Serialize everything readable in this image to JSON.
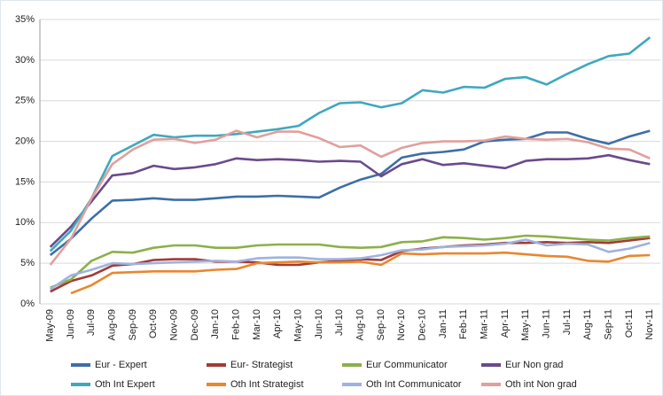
{
  "chart_data": {
    "type": "line",
    "categories": [
      "May-09",
      "Jun-09",
      "Jul-09",
      "Aug-09",
      "Sep-09",
      "Oct-09",
      "Nov-09",
      "Dec-09",
      "Jan-10",
      "Feb-10",
      "Mar-10",
      "Apr-10",
      "May-10",
      "Jun-10",
      "Jul-10",
      "Aug-10",
      "Sep-10",
      "Nov-10",
      "Dec-10",
      "Jan-11",
      "Feb-11",
      "Mar-11",
      "Apr-11",
      "May-11",
      "Jun-11",
      "Jul-11",
      "Aug-11",
      "Sep-11",
      "Oct-11",
      "Nov-11"
    ],
    "ylim": [
      0,
      35
    ],
    "yticks": [
      {
        "value": 0,
        "label": "0%"
      },
      {
        "value": 5,
        "label": "5%"
      },
      {
        "value": 10,
        "label": "10%"
      },
      {
        "value": 15,
        "label": "15%"
      },
      {
        "value": 20,
        "label": "20%"
      },
      {
        "value": 25,
        "label": "25%"
      },
      {
        "value": 30,
        "label": "30%"
      },
      {
        "value": 35,
        "label": "35%"
      }
    ],
    "grid": true,
    "legend": "bottom",
    "series": [
      {
        "name": "Eur - Expert",
        "color": "#3e6ea6",
        "values": [
          6,
          8,
          10.5,
          12.7,
          12.8,
          13,
          12.8,
          12.8,
          13,
          13.2,
          13.2,
          13.3,
          13.2,
          13.1,
          14.3,
          15.3,
          16,
          18,
          18.5,
          18.7,
          19,
          20,
          20.2,
          20.3,
          21.1,
          21.1,
          20.3,
          19.7,
          20.6,
          21.3
        ]
      },
      {
        "name": "Eur- Strategist",
        "color": "#a33a36",
        "values": [
          1.5,
          2.8,
          3.5,
          4.7,
          4.9,
          5.4,
          5.5,
          5.5,
          5.2,
          5.2,
          5.1,
          4.8,
          4.8,
          5.1,
          5.3,
          5.5,
          5.4,
          6.5,
          6.8,
          7,
          7.2,
          7.3,
          7.5,
          7.5,
          7.6,
          7.5,
          7.6,
          7.5,
          7.8,
          8.1
        ]
      },
      {
        "name": "Eur Communicator",
        "color": "#8cb04a",
        "values": [
          2,
          3,
          5.3,
          6.4,
          6.3,
          6.9,
          7.2,
          7.2,
          6.9,
          6.9,
          7.2,
          7.3,
          7.3,
          7.3,
          7,
          6.9,
          7,
          7.6,
          7.7,
          8.2,
          8.1,
          7.9,
          8.1,
          8.4,
          8.3,
          8.1,
          7.9,
          7.8,
          8.1,
          8.3
        ]
      },
      {
        "name": "Eur Non grad",
        "color": "#6a4a8c",
        "values": [
          7,
          9.5,
          12.6,
          15.8,
          16.1,
          17,
          16.6,
          16.8,
          17.2,
          17.9,
          17.7,
          17.8,
          17.7,
          17.5,
          17.6,
          17.5,
          15.7,
          17.2,
          17.8,
          17.1,
          17.3,
          17,
          16.7,
          17.6,
          17.8,
          17.8,
          17.9,
          18.3,
          17.7,
          17.2
        ]
      },
      {
        "name": "Oth Int Expert",
        "color": "#3fa8bd",
        "values": [
          6.5,
          9,
          13,
          18.2,
          19.5,
          20.8,
          20.5,
          20.7,
          20.7,
          20.9,
          21.2,
          21.5,
          21.9,
          23.5,
          24.7,
          24.8,
          24.2,
          24.7,
          26.3,
          26,
          26.7,
          26.6,
          27.7,
          27.9,
          27,
          28.3,
          29.5,
          30.5,
          30.8,
          32.8
        ]
      },
      {
        "name": "Oth Int Strategist",
        "color": "#e8872f",
        "values": [
          null,
          1.3,
          2.3,
          3.8,
          3.9,
          4,
          4,
          4,
          4.2,
          4.3,
          5,
          5.1,
          5.2,
          5.1,
          5.1,
          5.2,
          4.8,
          6.2,
          6.1,
          6.2,
          6.2,
          6.2,
          6.3,
          6.1,
          5.9,
          5.8,
          5.3,
          5.2,
          5.9,
          6
        ]
      },
      {
        "name": "Oth Int Communicator",
        "color": "#9db3e0",
        "values": [
          1.8,
          3.5,
          4.2,
          5,
          4.9,
          5,
          5.1,
          5.2,
          5.3,
          5.2,
          5.6,
          5.7,
          5.7,
          5.5,
          5.5,
          5.6,
          6,
          6.6,
          6.7,
          7,
          7.1,
          7.2,
          7.4,
          7.9,
          7.2,
          7.4,
          7.3,
          6.4,
          6.8,
          7.5
        ]
      },
      {
        "name": "Oth int Non grad",
        "color": "#e0a09c",
        "values": [
          4.8,
          8,
          13,
          17.2,
          19,
          20.2,
          20.3,
          19.8,
          20.2,
          21.3,
          20.5,
          21.2,
          21.2,
          20.4,
          19.3,
          19.5,
          18.1,
          19.2,
          19.8,
          20,
          20,
          20.1,
          20.6,
          20.3,
          20.2,
          20.3,
          19.9,
          19.1,
          19,
          17.9
        ]
      }
    ]
  }
}
